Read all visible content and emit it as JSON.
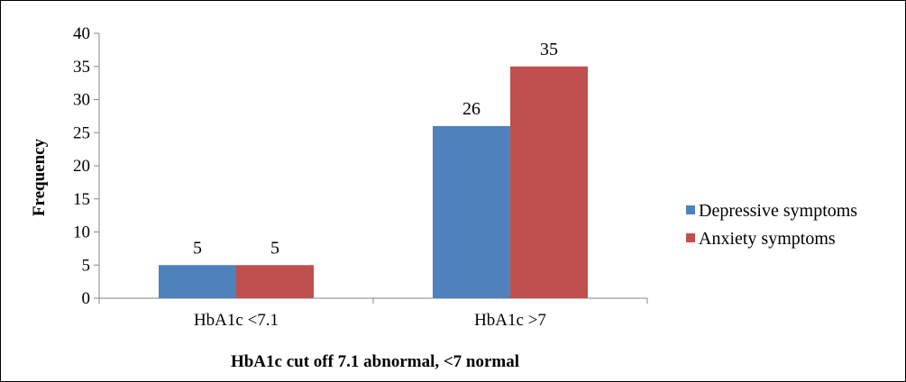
{
  "chart_data": {
    "type": "bar",
    "categories": [
      "HbA1c <7.1",
      "HbA1c >7"
    ],
    "series": [
      {
        "name": "Depressive symptoms",
        "values": [
          5,
          26
        ],
        "color": "#4f81bd"
      },
      {
        "name": "Anxiety symptoms",
        "values": [
          5,
          35
        ],
        "color": "#c0504d"
      }
    ],
    "title": "",
    "xlabel": "HbA1c cut off 7.1 abnormal, <7 normal",
    "ylabel": "Frequency",
    "ylim": [
      0,
      40
    ],
    "yticks": [
      0,
      5,
      10,
      15,
      20,
      25,
      30,
      35,
      40
    ],
    "grid": false,
    "legend": "right",
    "data_labels": true
  }
}
